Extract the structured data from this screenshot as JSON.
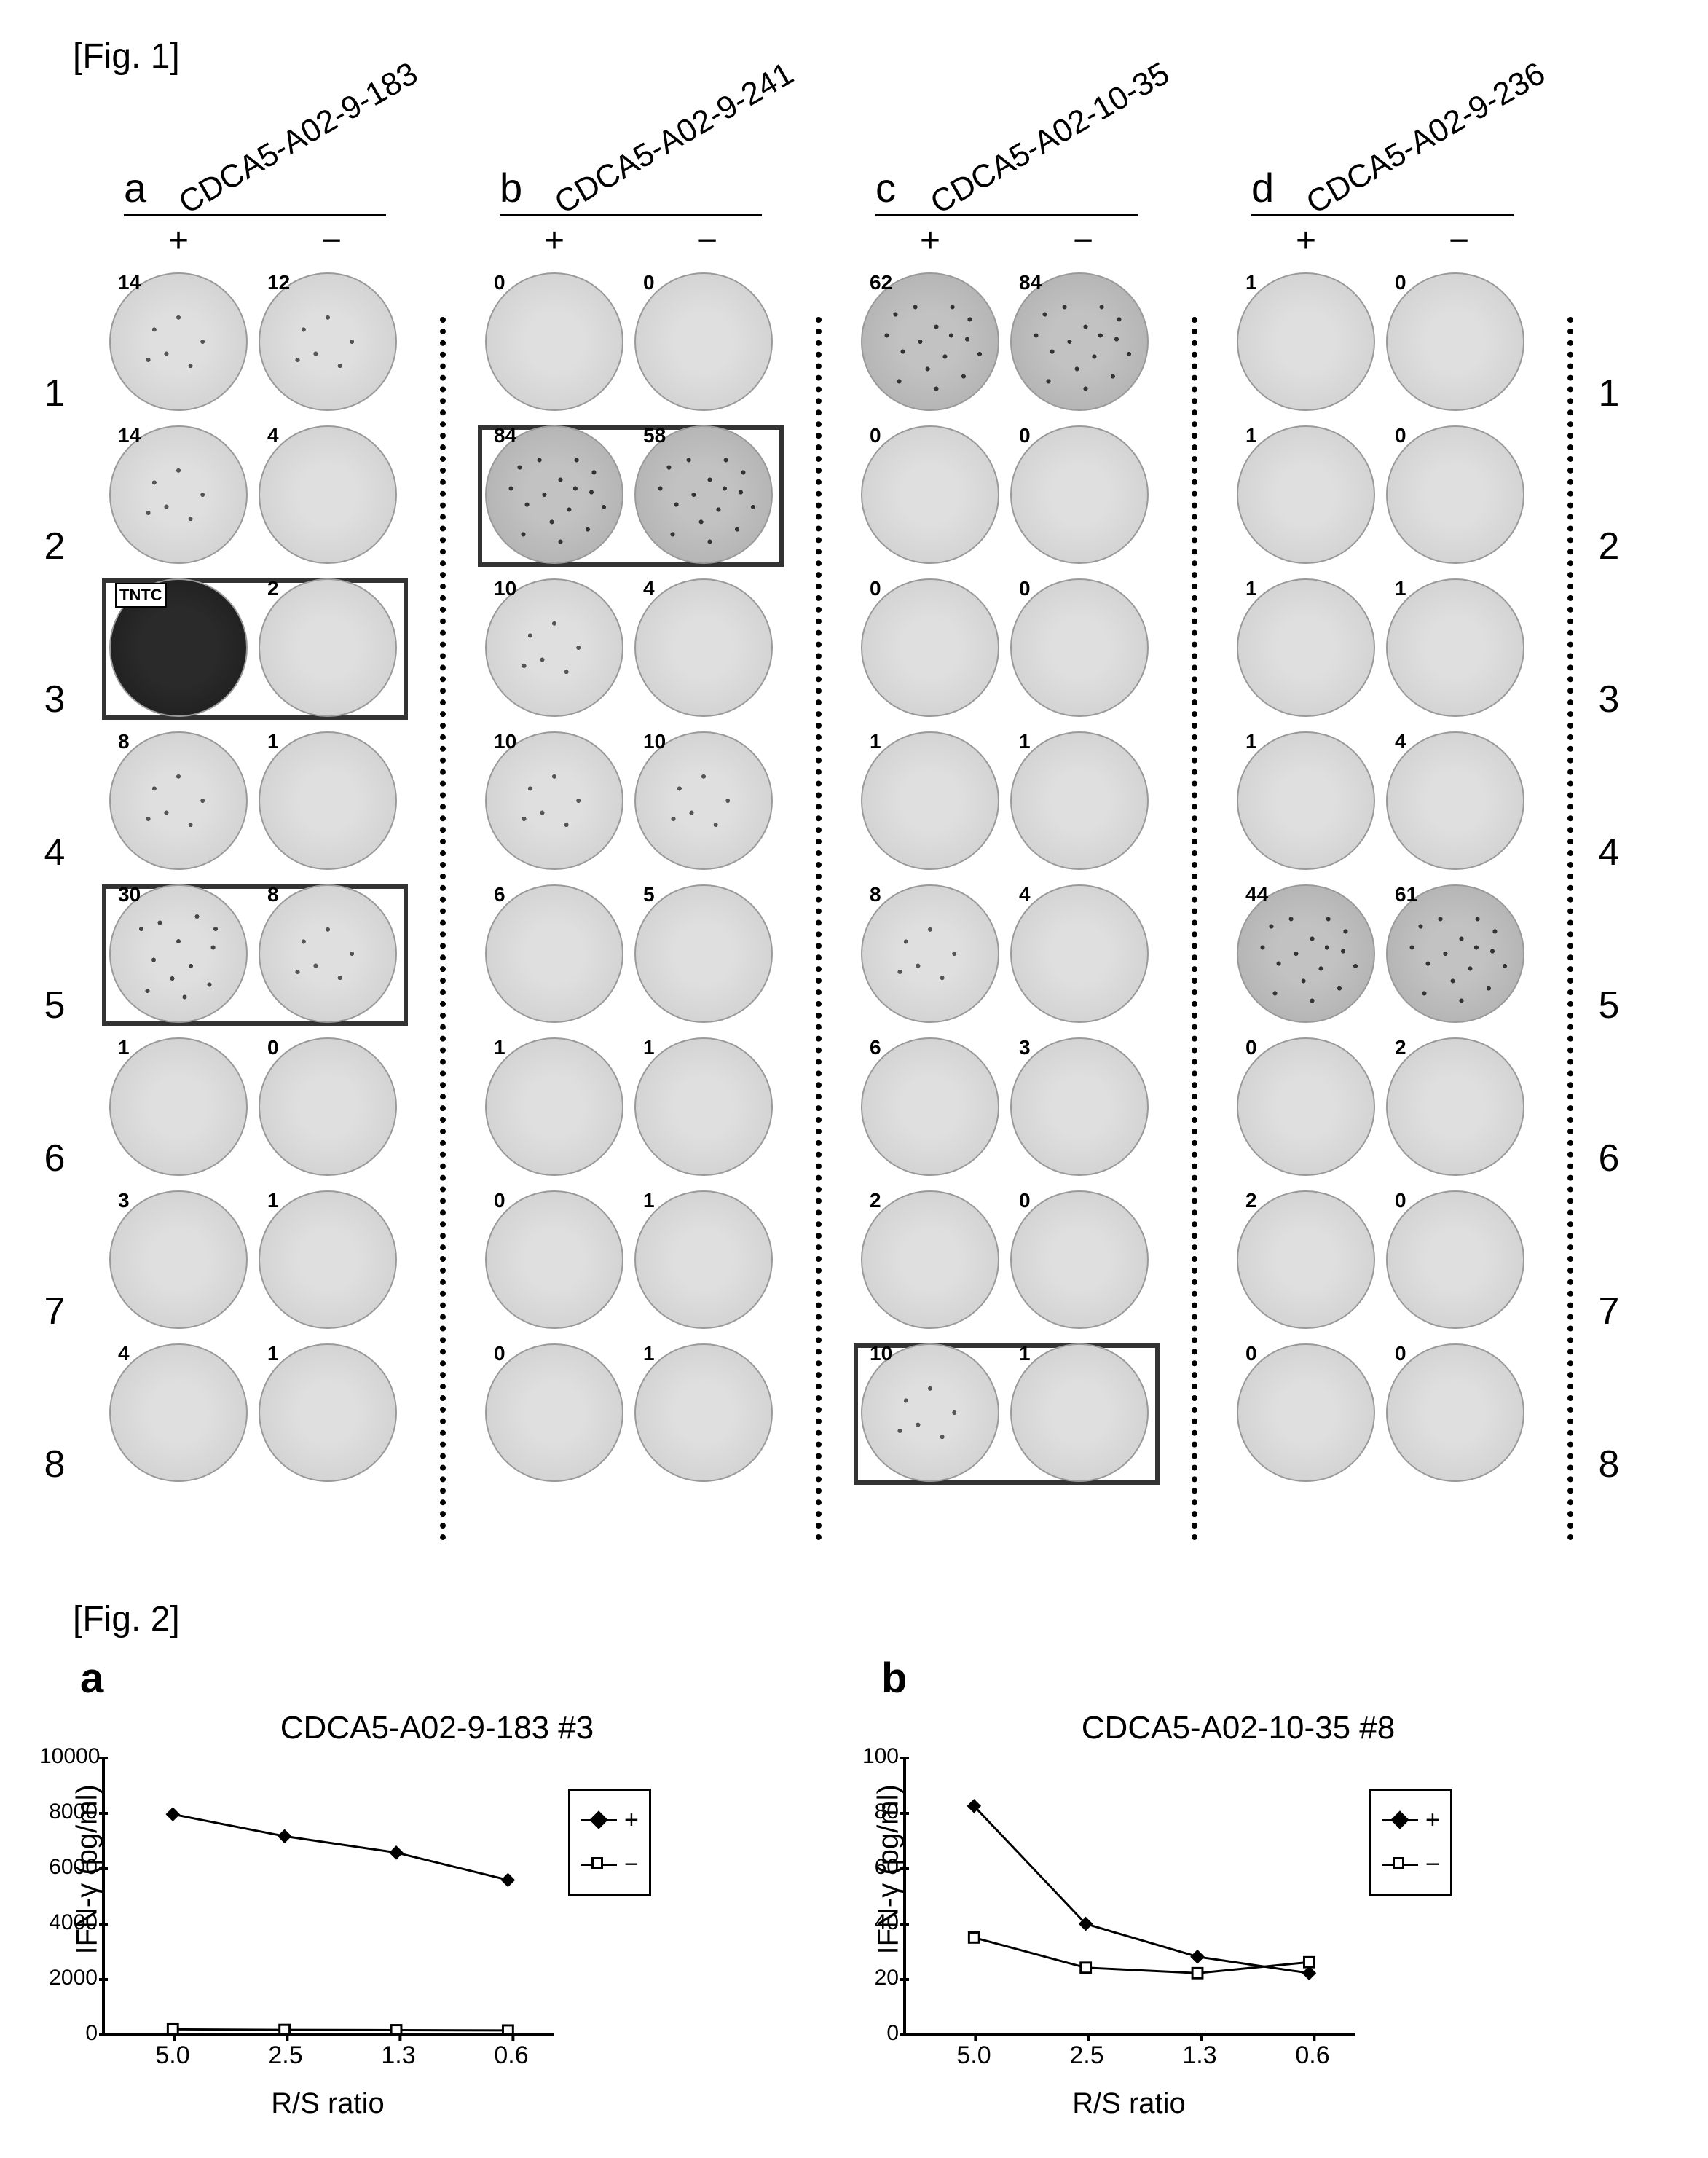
{
  "fig1": {
    "label": "[Fig. 1]",
    "row_labels": [
      "1",
      "2",
      "3",
      "4",
      "5",
      "6",
      "7",
      "8"
    ],
    "pm": {
      "plus": "+",
      "minus": "−"
    },
    "panels": [
      {
        "letter": "a",
        "header": "CDCA5-A02-9-183",
        "rows": [
          {
            "p": "14",
            "m": "12",
            "box": false,
            "pstyle": "spk",
            "mstyle": "spk"
          },
          {
            "p": "14",
            "m": "4",
            "box": false,
            "pstyle": "spk",
            "mstyle": ""
          },
          {
            "p": "TNTC",
            "m": "2",
            "box": true,
            "pstyle": "dark",
            "mstyle": "",
            "tntc": true
          },
          {
            "p": "8",
            "m": "1",
            "box": false,
            "pstyle": "spk",
            "mstyle": ""
          },
          {
            "p": "30",
            "m": "8",
            "box": true,
            "pstyle": "many",
            "mstyle": "spk"
          },
          {
            "p": "1",
            "m": "0",
            "box": false,
            "pstyle": "",
            "mstyle": ""
          },
          {
            "p": "3",
            "m": "1",
            "box": false,
            "pstyle": "",
            "mstyle": ""
          },
          {
            "p": "4",
            "m": "1",
            "box": false,
            "pstyle": "",
            "mstyle": ""
          }
        ]
      },
      {
        "letter": "b",
        "header": "CDCA5-A02-9-241",
        "rows": [
          {
            "p": "0",
            "m": "0",
            "box": false,
            "pstyle": "",
            "mstyle": ""
          },
          {
            "p": "84",
            "m": "58",
            "box": true,
            "pstyle": "medspk",
            "mstyle": "medspk"
          },
          {
            "p": "10",
            "m": "4",
            "box": false,
            "pstyle": "spk",
            "mstyle": ""
          },
          {
            "p": "10",
            "m": "10",
            "box": false,
            "pstyle": "spk",
            "mstyle": "spk"
          },
          {
            "p": "6",
            "m": "5",
            "box": false,
            "pstyle": "",
            "mstyle": ""
          },
          {
            "p": "1",
            "m": "1",
            "box": false,
            "pstyle": "",
            "mstyle": ""
          },
          {
            "p": "0",
            "m": "1",
            "box": false,
            "pstyle": "",
            "mstyle": ""
          },
          {
            "p": "0",
            "m": "1",
            "box": false,
            "pstyle": "",
            "mstyle": ""
          }
        ]
      },
      {
        "letter": "c",
        "header": "CDCA5-A02-10-35",
        "rows": [
          {
            "p": "62",
            "m": "84",
            "box": false,
            "pstyle": "medspk",
            "mstyle": "medspk"
          },
          {
            "p": "0",
            "m": "0",
            "box": false,
            "pstyle": "",
            "mstyle": ""
          },
          {
            "p": "0",
            "m": "0",
            "box": false,
            "pstyle": "",
            "mstyle": ""
          },
          {
            "p": "1",
            "m": "1",
            "box": false,
            "pstyle": "",
            "mstyle": ""
          },
          {
            "p": "8",
            "m": "4",
            "box": false,
            "pstyle": "spk",
            "mstyle": ""
          },
          {
            "p": "6",
            "m": "3",
            "box": false,
            "pstyle": "",
            "mstyle": ""
          },
          {
            "p": "2",
            "m": "0",
            "box": false,
            "pstyle": "",
            "mstyle": ""
          },
          {
            "p": "10",
            "m": "1",
            "box": true,
            "pstyle": "spk",
            "mstyle": ""
          }
        ]
      },
      {
        "letter": "d",
        "header": "CDCA5-A02-9-236",
        "rows": [
          {
            "p": "1",
            "m": "0",
            "box": false,
            "pstyle": "",
            "mstyle": ""
          },
          {
            "p": "1",
            "m": "0",
            "box": false,
            "pstyle": "",
            "mstyle": ""
          },
          {
            "p": "1",
            "m": "1",
            "box": false,
            "pstyle": "",
            "mstyle": ""
          },
          {
            "p": "1",
            "m": "4",
            "box": false,
            "pstyle": "",
            "mstyle": ""
          },
          {
            "p": "44",
            "m": "61",
            "box": false,
            "pstyle": "medspk",
            "mstyle": "medspk"
          },
          {
            "p": "0",
            "m": "2",
            "box": false,
            "pstyle": "",
            "mstyle": ""
          },
          {
            "p": "2",
            "m": "0",
            "box": false,
            "pstyle": "",
            "mstyle": ""
          },
          {
            "p": "0",
            "m": "0",
            "box": false,
            "pstyle": "",
            "mstyle": ""
          }
        ]
      }
    ]
  },
  "fig2": {
    "label": "[Fig. 2]",
    "x_label": "R/S ratio",
    "y_label": "IFN-γ (pg/ml)",
    "x_ticks": [
      "5.0",
      "2.5",
      "1.3",
      "0.6"
    ],
    "legend": {
      "plus": "+",
      "minus": "−"
    },
    "charts": [
      {
        "letter": "a",
        "title": "CDCA5-A02-9-183 #3",
        "ylim": [
          0,
          10000
        ],
        "yticks": [
          0,
          2000,
          4000,
          6000,
          8000,
          10000
        ],
        "series_plus": [
          8000,
          7200,
          6600,
          5600
        ],
        "series_minus": [
          150,
          130,
          120,
          110
        ],
        "plus_marker": "diamond-filled",
        "plus_color": "#000000",
        "minus_marker": "square-open",
        "minus_color": "#000000",
        "line_width": 3,
        "marker_size": 14,
        "background_color": "#ffffff"
      },
      {
        "letter": "b",
        "title": "CDCA5-A02-10-35 #8",
        "ylim": [
          0,
          100
        ],
        "yticks": [
          0,
          20,
          40,
          60,
          80,
          100
        ],
        "series_plus": [
          83,
          40,
          28,
          22
        ],
        "series_minus": [
          35,
          24,
          22,
          26
        ],
        "plus_marker": "diamond-filled",
        "plus_color": "#000000",
        "minus_marker": "square-open",
        "minus_color": "#000000",
        "line_width": 3,
        "marker_size": 14,
        "background_color": "#ffffff"
      }
    ]
  },
  "style": {
    "font_family": "Arial",
    "text_color": "#000000",
    "well_bg": "#e8e8e8",
    "well_border": "#999999",
    "box_border": "#333333",
    "dotted_divider": "#000000"
  }
}
